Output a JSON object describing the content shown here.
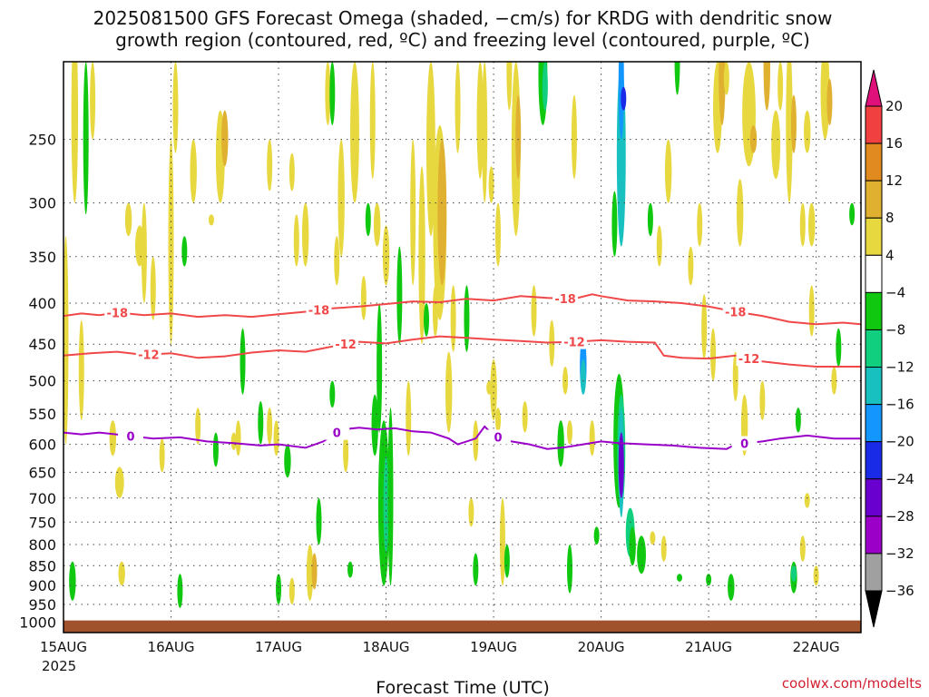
{
  "title_line1": "2025081500 GFS Forecast Omega (shaded, −cm/s) for KRDG with dendritic snow",
  "title_line2": "growth region (contoured, red, ºC) and freezing level (contoured, purple, ºC)",
  "credit": "coolwx.com/modelts",
  "chart_data": {
    "type": "heatmap",
    "title": "2025081500 GFS Forecast Omega (shaded, −cm/s) for KRDG with dendritic snow growth region (contoured, red, ºC) and freezing level (contoured, purple, ºC)",
    "xlabel": "Forecast Time (UTC)",
    "ylabel": "",
    "x_unit": "hours since 2025-08-15 00 UTC",
    "x_range": [
      0,
      178
    ],
    "x_tick_hours": [
      0,
      24,
      48,
      72,
      96,
      120,
      144,
      168
    ],
    "x_tick_labels": [
      "15AUG",
      "16AUG",
      "17AUG",
      "18AUG",
      "19AUG",
      "20AUG",
      "21AUG",
      "22AUG"
    ],
    "x_year_label": "2025",
    "y_scale": "log",
    "y_range": [
      1030,
      200
    ],
    "y_ticks": [
      250,
      300,
      350,
      400,
      450,
      500,
      550,
      600,
      650,
      700,
      750,
      800,
      850,
      900,
      950,
      1000
    ],
    "colorbar": {
      "levels": [
        -36,
        -32,
        -28,
        -24,
        -20,
        -16,
        -12,
        -8,
        -4,
        4,
        8,
        12,
        16,
        20
      ],
      "colors": [
        "#000000",
        "#a0a0a0",
        "#9a00c8",
        "#6a00d0",
        "#1a2be8",
        "#1496ff",
        "#18c0c0",
        "#10d080",
        "#10c810",
        "#ffffff",
        "#e8d840",
        "#e0b030",
        "#e08a20",
        "#f04040",
        "#e0107a"
      ]
    },
    "surface_band_color": "#a0522d",
    "contours": [
      {
        "label": "-18",
        "color": "#f04848",
        "points": [
          [
            0,
            415
          ],
          [
            4,
            412
          ],
          [
            8,
            414
          ],
          [
            12,
            411
          ],
          [
            18,
            414
          ],
          [
            24,
            412
          ],
          [
            30,
            416
          ],
          [
            36,
            414
          ],
          [
            42,
            416
          ],
          [
            48,
            413
          ],
          [
            54,
            410
          ],
          [
            60,
            406
          ],
          [
            66,
            404
          ],
          [
            72,
            401
          ],
          [
            78,
            398
          ],
          [
            84,
            399
          ],
          [
            90,
            395
          ],
          [
            96,
            397
          ],
          [
            102,
            392
          ],
          [
            108,
            394
          ],
          [
            114,
            395
          ],
          [
            118,
            390
          ],
          [
            120,
            392
          ],
          [
            126,
            397
          ],
          [
            132,
            398
          ],
          [
            138,
            400
          ],
          [
            144,
            404
          ],
          [
            150,
            410
          ],
          [
            156,
            415
          ],
          [
            162,
            422
          ],
          [
            168,
            425
          ],
          [
            174,
            423
          ],
          [
            178,
            425
          ]
        ],
        "labels_at": [
          12,
          57,
          112,
          150
        ]
      },
      {
        "label": "-12",
        "color": "#f04848",
        "points": [
          [
            0,
            465
          ],
          [
            6,
            462
          ],
          [
            12,
            460
          ],
          [
            18,
            464
          ],
          [
            24,
            462
          ],
          [
            30,
            468
          ],
          [
            36,
            466
          ],
          [
            42,
            461
          ],
          [
            48,
            458
          ],
          [
            54,
            460
          ],
          [
            60,
            453
          ],
          [
            66,
            447
          ],
          [
            72,
            449
          ],
          [
            78,
            444
          ],
          [
            84,
            440
          ],
          [
            90,
            442
          ],
          [
            96,
            444
          ],
          [
            102,
            446
          ],
          [
            108,
            448
          ],
          [
            114,
            447
          ],
          [
            120,
            445
          ],
          [
            126,
            447
          ],
          [
            132,
            448
          ],
          [
            134,
            465
          ],
          [
            138,
            468
          ],
          [
            144,
            469
          ],
          [
            150,
            465
          ],
          [
            156,
            473
          ],
          [
            162,
            477
          ],
          [
            168,
            480
          ],
          [
            178,
            480
          ]
        ],
        "labels_at": [
          19,
          63,
          114,
          153
        ]
      },
      {
        "label": "0",
        "color": "#9a00c8",
        "points": [
          [
            0,
            580
          ],
          [
            4,
            583
          ],
          [
            8,
            580
          ],
          [
            14,
            585
          ],
          [
            20,
            590
          ],
          [
            26,
            588
          ],
          [
            32,
            595
          ],
          [
            38,
            598
          ],
          [
            44,
            602
          ],
          [
            48,
            600
          ],
          [
            54,
            606
          ],
          [
            58,
            595
          ],
          [
            62,
            575
          ],
          [
            66,
            572
          ],
          [
            70,
            575
          ],
          [
            74,
            573
          ],
          [
            78,
            578
          ],
          [
            82,
            580
          ],
          [
            86,
            590
          ],
          [
            88,
            600
          ],
          [
            92,
            590
          ],
          [
            94,
            570
          ],
          [
            96,
            585
          ],
          [
            100,
            595
          ],
          [
            104,
            600
          ],
          [
            108,
            608
          ],
          [
            112,
            605
          ],
          [
            116,
            600
          ],
          [
            120,
            595
          ],
          [
            124,
            598
          ],
          [
            130,
            600
          ],
          [
            136,
            602
          ],
          [
            142,
            606
          ],
          [
            148,
            608
          ],
          [
            150,
            600
          ],
          [
            156,
            595
          ],
          [
            160,
            590
          ],
          [
            166,
            585
          ],
          [
            172,
            590
          ],
          [
            178,
            590
          ]
        ],
        "labels_at": [
          15,
          61,
          97,
          152
        ]
      }
    ]
  }
}
